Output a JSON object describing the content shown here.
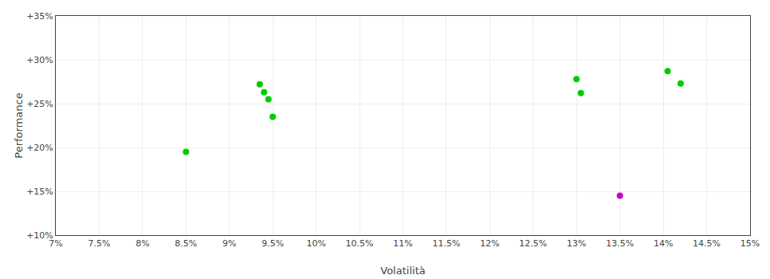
{
  "chart_data": {
    "type": "scatter",
    "xlabel": "Volatilità",
    "ylabel": "Performance",
    "x": [
      8.5,
      9.35,
      9.4,
      9.45,
      9.5,
      13.0,
      13.05,
      14.05,
      14.2,
      13.5
    ],
    "values": [
      19.5,
      27.2,
      26.3,
      25.5,
      23.5,
      27.8,
      26.2,
      28.7,
      27.3,
      14.5
    ],
    "colors": [
      "#00cc00",
      "#00cc00",
      "#00cc00",
      "#00cc00",
      "#00cc00",
      "#00cc00",
      "#00cc00",
      "#00cc00",
      "#00cc00",
      "#cc00cc"
    ],
    "xlim": [
      7.0,
      15.0
    ],
    "ylim": [
      10.0,
      35.0
    ],
    "xticks": [
      {
        "value": 7.0,
        "label": "7%"
      },
      {
        "value": 7.5,
        "label": "7.5%"
      },
      {
        "value": 8.0,
        "label": "8%"
      },
      {
        "value": 8.5,
        "label": "8.5%"
      },
      {
        "value": 9.0,
        "label": "9%"
      },
      {
        "value": 9.5,
        "label": "9.5%"
      },
      {
        "value": 10.0,
        "label": "10%"
      },
      {
        "value": 10.5,
        "label": "10.5%"
      },
      {
        "value": 11.0,
        "label": "11%"
      },
      {
        "value": 11.5,
        "label": "11.5%"
      },
      {
        "value": 12.0,
        "label": "12%"
      },
      {
        "value": 12.5,
        "label": "12.5%"
      },
      {
        "value": 13.0,
        "label": "13%"
      },
      {
        "value": 13.5,
        "label": "13.5%"
      },
      {
        "value": 14.0,
        "label": "14%"
      },
      {
        "value": 14.5,
        "label": "14.5%"
      },
      {
        "value": 15.0,
        "label": "15%"
      }
    ],
    "yticks": [
      {
        "value": 10,
        "label": "+10%"
      },
      {
        "value": 15,
        "label": "+15%"
      },
      {
        "value": 20,
        "label": "+20%"
      },
      {
        "value": 25,
        "label": "+25%"
      },
      {
        "value": 30,
        "label": "+30%"
      },
      {
        "value": 35,
        "label": "+35%"
      }
    ],
    "grid": true
  }
}
